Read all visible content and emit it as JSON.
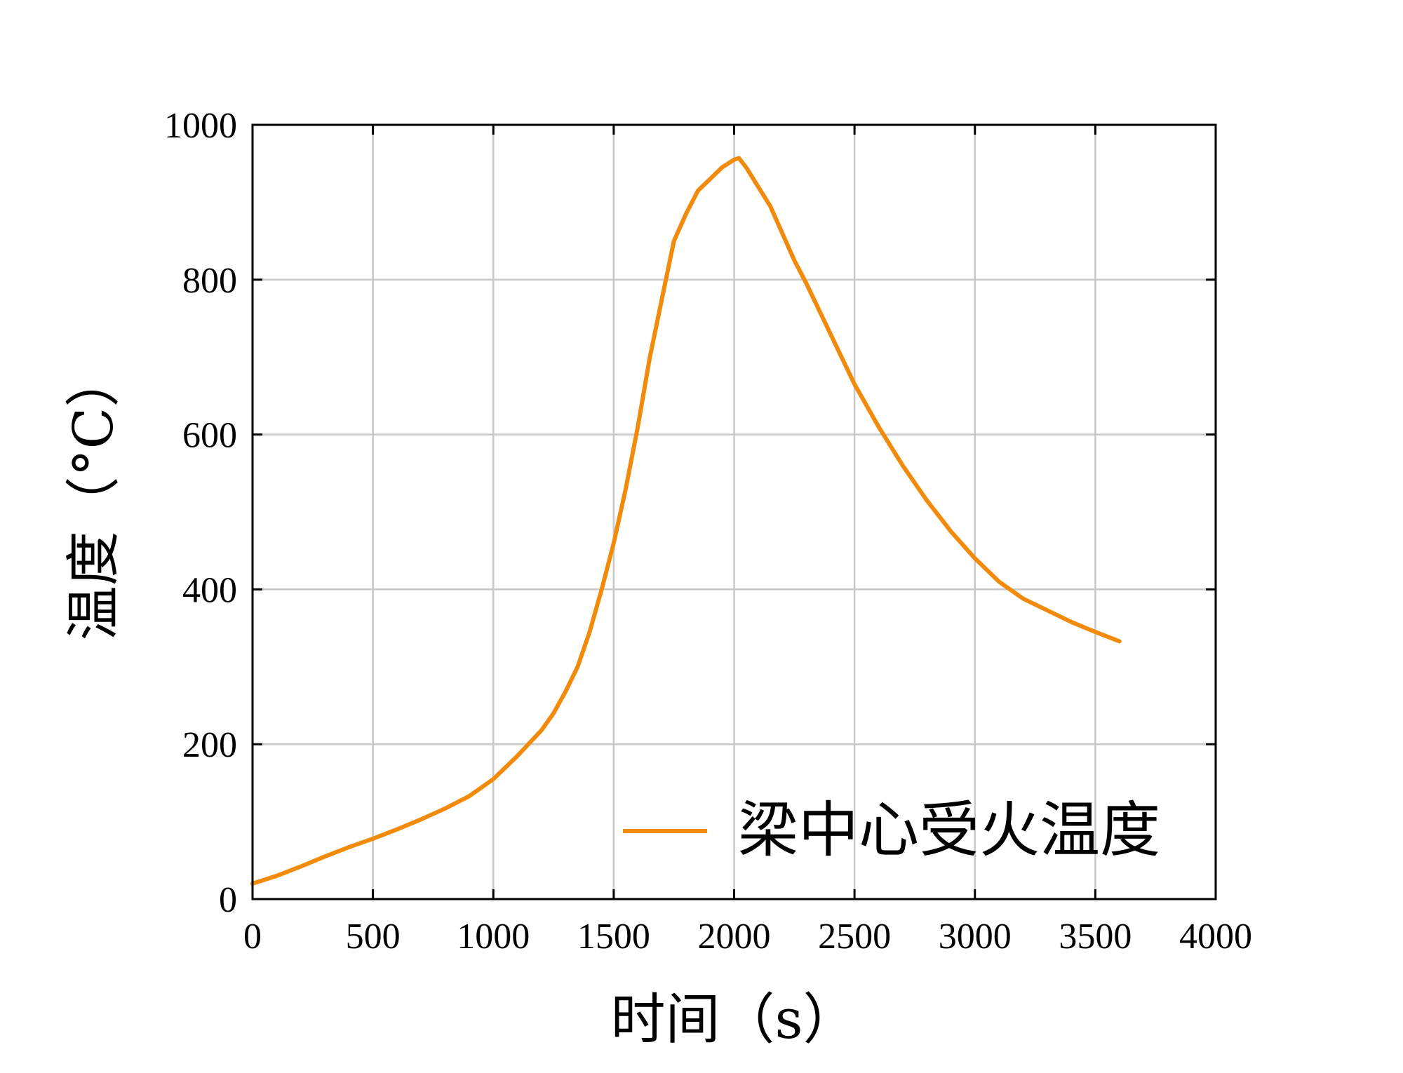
{
  "chart_data": {
    "type": "line",
    "xlabel": "时间（s）",
    "ylabel": "温度（°C）",
    "xlim": [
      0,
      4000
    ],
    "ylim": [
      0,
      1000
    ],
    "xticks": [
      0,
      500,
      1000,
      1500,
      2000,
      2500,
      3000,
      3500,
      4000
    ],
    "yticks": [
      0,
      200,
      400,
      600,
      800,
      1000
    ],
    "xtick_labels": [
      "0",
      "500",
      "1000",
      "1500",
      "2000",
      "2500",
      "3000",
      "3500",
      "4000"
    ],
    "ytick_labels": [
      "0",
      "200",
      "400",
      "600",
      "800",
      "1000"
    ],
    "grid": true,
    "legend_position": "bottom-right",
    "series": [
      {
        "name": "梁中心受火温度",
        "color": "#f28a0c",
        "x": [
          0,
          100,
          200,
          300,
          400,
          500,
          600,
          700,
          800,
          900,
          1000,
          1100,
          1200,
          1250,
          1300,
          1350,
          1400,
          1450,
          1500,
          1550,
          1600,
          1650,
          1700,
          1750,
          1800,
          1850,
          1900,
          1950,
          2000,
          2020,
          2050,
          2100,
          2150,
          2200,
          2250,
          2300,
          2400,
          2500,
          2600,
          2700,
          2800,
          2900,
          3000,
          3100,
          3200,
          3300,
          3400,
          3500,
          3600
        ],
        "y": [
          20,
          30,
          42,
          55,
          67,
          78,
          90,
          103,
          117,
          133,
          155,
          185,
          218,
          240,
          268,
          300,
          345,
          400,
          460,
          530,
          610,
          700,
          775,
          850,
          885,
          915,
          930,
          945,
          955,
          957,
          945,
          920,
          895,
          860,
          825,
          795,
          730,
          665,
          610,
          560,
          515,
          475,
          440,
          410,
          388,
          373,
          358,
          345,
          333
        ]
      }
    ]
  }
}
